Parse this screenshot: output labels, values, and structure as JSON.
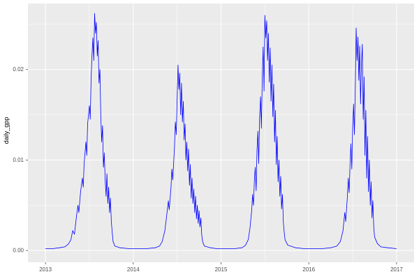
{
  "chart_data": {
    "type": "line",
    "title": "",
    "xlabel": "",
    "ylabel": "daily_gpp",
    "legend": "none",
    "grid": "on",
    "panel_background": "#EBEBEB",
    "grid_color": "#FFFFFF",
    "line_color": "#0000FF",
    "tick_label_color": "#4D4D4D",
    "tick_mark_color": "#333333",
    "xlim": [
      2012.8,
      2017.2
    ],
    "ylim": [
      -0.0013,
      0.0273
    ],
    "x_ticks": [
      2013,
      2014,
      2015,
      2016,
      2017
    ],
    "x_tick_labels": [
      "2013",
      "2014",
      "2015",
      "2016",
      "2017"
    ],
    "x_minor_ticks": [
      2013.5,
      2014.5,
      2015.5,
      2016.5
    ],
    "y_ticks": [
      0.0,
      0.01,
      0.02
    ],
    "y_tick_labels": [
      "0.00",
      "0.01",
      "0.02"
    ],
    "y_minor_ticks": [
      0.005,
      0.015,
      0.025
    ],
    "series": [
      {
        "name": "daily_gpp",
        "points": [
          [
            2013.0,
            0.0002
          ],
          [
            2013.08,
            0.0002
          ],
          [
            2013.16,
            0.0003
          ],
          [
            2013.22,
            0.0004
          ],
          [
            2013.26,
            0.0007
          ],
          [
            2013.29,
            0.0012
          ],
          [
            2013.31,
            0.0022
          ],
          [
            2013.33,
            0.0018
          ],
          [
            2013.35,
            0.0035
          ],
          [
            2013.37,
            0.005
          ],
          [
            2013.38,
            0.0042
          ],
          [
            2013.4,
            0.0065
          ],
          [
            2013.42,
            0.008
          ],
          [
            2013.43,
            0.007
          ],
          [
            2013.44,
            0.0095
          ],
          [
            2013.46,
            0.012
          ],
          [
            2013.47,
            0.0105
          ],
          [
            2013.48,
            0.014
          ],
          [
            2013.5,
            0.016
          ],
          [
            2013.51,
            0.0145
          ],
          [
            2013.52,
            0.019
          ],
          [
            2013.53,
            0.0215
          ],
          [
            2013.54,
            0.0235
          ],
          [
            2013.55,
            0.021
          ],
          [
            2013.56,
            0.0262
          ],
          [
            2013.57,
            0.024
          ],
          [
            2013.58,
            0.0252
          ],
          [
            2013.59,
            0.0215
          ],
          [
            2013.6,
            0.0232
          ],
          [
            2013.61,
            0.0185
          ],
          [
            2013.62,
            0.02
          ],
          [
            2013.63,
            0.015
          ],
          [
            2013.64,
            0.012
          ],
          [
            2013.65,
            0.0138
          ],
          [
            2013.66,
            0.0092
          ],
          [
            2013.67,
            0.0108
          ],
          [
            2013.68,
            0.0078
          ],
          [
            2013.69,
            0.006
          ],
          [
            2013.7,
            0.0085
          ],
          [
            2013.71,
            0.0052
          ],
          [
            2013.72,
            0.007
          ],
          [
            2013.73,
            0.0042
          ],
          [
            2013.74,
            0.0058
          ],
          [
            2013.75,
            0.0032
          ],
          [
            2013.76,
            0.002
          ],
          [
            2013.77,
            0.001
          ],
          [
            2013.79,
            0.0005
          ],
          [
            2013.85,
            0.0003
          ],
          [
            2013.95,
            0.0002
          ],
          [
            2014.05,
            0.0002
          ],
          [
            2014.15,
            0.0002
          ],
          [
            2014.25,
            0.0003
          ],
          [
            2014.3,
            0.0005
          ],
          [
            2014.33,
            0.001
          ],
          [
            2014.36,
            0.0022
          ],
          [
            2014.38,
            0.0038
          ],
          [
            2014.4,
            0.0055
          ],
          [
            2014.41,
            0.0045
          ],
          [
            2014.43,
            0.007
          ],
          [
            2014.44,
            0.009
          ],
          [
            2014.45,
            0.0078
          ],
          [
            2014.47,
            0.0115
          ],
          [
            2014.48,
            0.0142
          ],
          [
            2014.49,
            0.0128
          ],
          [
            2014.5,
            0.0168
          ],
          [
            2014.51,
            0.0205
          ],
          [
            2014.52,
            0.0178
          ],
          [
            2014.53,
            0.0196
          ],
          [
            2014.54,
            0.015
          ],
          [
            2014.55,
            0.0185
          ],
          [
            2014.56,
            0.0142
          ],
          [
            2014.57,
            0.0165
          ],
          [
            2014.58,
            0.0122
          ],
          [
            2014.59,
            0.014
          ],
          [
            2014.6,
            0.01
          ],
          [
            2014.61,
            0.012
          ],
          [
            2014.62,
            0.0088
          ],
          [
            2014.63,
            0.0112
          ],
          [
            2014.64,
            0.0072
          ],
          [
            2014.65,
            0.0095
          ],
          [
            2014.66,
            0.0058
          ],
          [
            2014.67,
            0.008
          ],
          [
            2014.68,
            0.0052
          ],
          [
            2014.69,
            0.0068
          ],
          [
            2014.7,
            0.0042
          ],
          [
            2014.71,
            0.006
          ],
          [
            2014.72,
            0.0035
          ],
          [
            2014.73,
            0.005
          ],
          [
            2014.74,
            0.003
          ],
          [
            2014.75,
            0.0044
          ],
          [
            2014.76,
            0.0026
          ],
          [
            2014.77,
            0.0036
          ],
          [
            2014.78,
            0.0018
          ],
          [
            2014.79,
            0.001
          ],
          [
            2014.81,
            0.0005
          ],
          [
            2014.88,
            0.0003
          ],
          [
            2014.95,
            0.0002
          ],
          [
            2015.05,
            0.0002
          ],
          [
            2015.15,
            0.0002
          ],
          [
            2015.24,
            0.0003
          ],
          [
            2015.28,
            0.0006
          ],
          [
            2015.31,
            0.0012
          ],
          [
            2015.33,
            0.0025
          ],
          [
            2015.35,
            0.0045
          ],
          [
            2015.36,
            0.0062
          ],
          [
            2015.37,
            0.005
          ],
          [
            2015.38,
            0.0078
          ],
          [
            2015.39,
            0.0092
          ],
          [
            2015.4,
            0.0066
          ],
          [
            2015.41,
            0.011
          ],
          [
            2015.42,
            0.0132
          ],
          [
            2015.43,
            0.0096
          ],
          [
            2015.44,
            0.0148
          ],
          [
            2015.45,
            0.017
          ],
          [
            2015.46,
            0.0135
          ],
          [
            2015.47,
            0.0192
          ],
          [
            2015.48,
            0.0225
          ],
          [
            2015.49,
            0.0176
          ],
          [
            2015.5,
            0.026
          ],
          [
            2015.51,
            0.0235
          ],
          [
            2015.52,
            0.0254
          ],
          [
            2015.53,
            0.021
          ],
          [
            2015.54,
            0.024
          ],
          [
            2015.55,
            0.0186
          ],
          [
            2015.56,
            0.0224
          ],
          [
            2015.57,
            0.0165
          ],
          [
            2015.58,
            0.0205
          ],
          [
            2015.59,
            0.0148
          ],
          [
            2015.6,
            0.0184
          ],
          [
            2015.61,
            0.012
          ],
          [
            2015.62,
            0.0155
          ],
          [
            2015.63,
            0.0095
          ],
          [
            2015.64,
            0.0126
          ],
          [
            2015.65,
            0.0076
          ],
          [
            2015.66,
            0.01
          ],
          [
            2015.67,
            0.006
          ],
          [
            2015.68,
            0.0082
          ],
          [
            2015.69,
            0.0046
          ],
          [
            2015.7,
            0.0062
          ],
          [
            2015.71,
            0.0032
          ],
          [
            2015.72,
            0.002
          ],
          [
            2015.73,
            0.0012
          ],
          [
            2015.76,
            0.0006
          ],
          [
            2015.85,
            0.0003
          ],
          [
            2015.95,
            0.0002
          ],
          [
            2016.05,
            0.0002
          ],
          [
            2016.15,
            0.0002
          ],
          [
            2016.25,
            0.0003
          ],
          [
            2016.32,
            0.0005
          ],
          [
            2016.36,
            0.001
          ],
          [
            2016.39,
            0.0022
          ],
          [
            2016.41,
            0.0042
          ],
          [
            2016.42,
            0.0032
          ],
          [
            2016.44,
            0.006
          ],
          [
            2016.45,
            0.008
          ],
          [
            2016.46,
            0.0064
          ],
          [
            2016.47,
            0.0096
          ],
          [
            2016.48,
            0.0118
          ],
          [
            2016.49,
            0.009
          ],
          [
            2016.5,
            0.0136
          ],
          [
            2016.51,
            0.0162
          ],
          [
            2016.52,
            0.0128
          ],
          [
            2016.53,
            0.018
          ],
          [
            2016.54,
            0.0246
          ],
          [
            2016.55,
            0.021
          ],
          [
            2016.56,
            0.0236
          ],
          [
            2016.57,
            0.0188
          ],
          [
            2016.58,
            0.0226
          ],
          [
            2016.59,
            0.0162
          ],
          [
            2016.6,
            0.0206
          ],
          [
            2016.61,
            0.0228
          ],
          [
            2016.62,
            0.0145
          ],
          [
            2016.63,
            0.0192
          ],
          [
            2016.64,
            0.0105
          ],
          [
            2016.65,
            0.0155
          ],
          [
            2016.66,
            0.008
          ],
          [
            2016.67,
            0.0126
          ],
          [
            2016.68,
            0.0065
          ],
          [
            2016.69,
            0.01
          ],
          [
            2016.7,
            0.005
          ],
          [
            2016.71,
            0.0076
          ],
          [
            2016.72,
            0.0036
          ],
          [
            2016.73,
            0.0055
          ],
          [
            2016.74,
            0.0026
          ],
          [
            2016.75,
            0.0015
          ],
          [
            2016.78,
            0.0008
          ],
          [
            2016.82,
            0.0004
          ],
          [
            2016.9,
            0.0003
          ],
          [
            2017.0,
            0.0002
          ]
        ]
      }
    ]
  }
}
